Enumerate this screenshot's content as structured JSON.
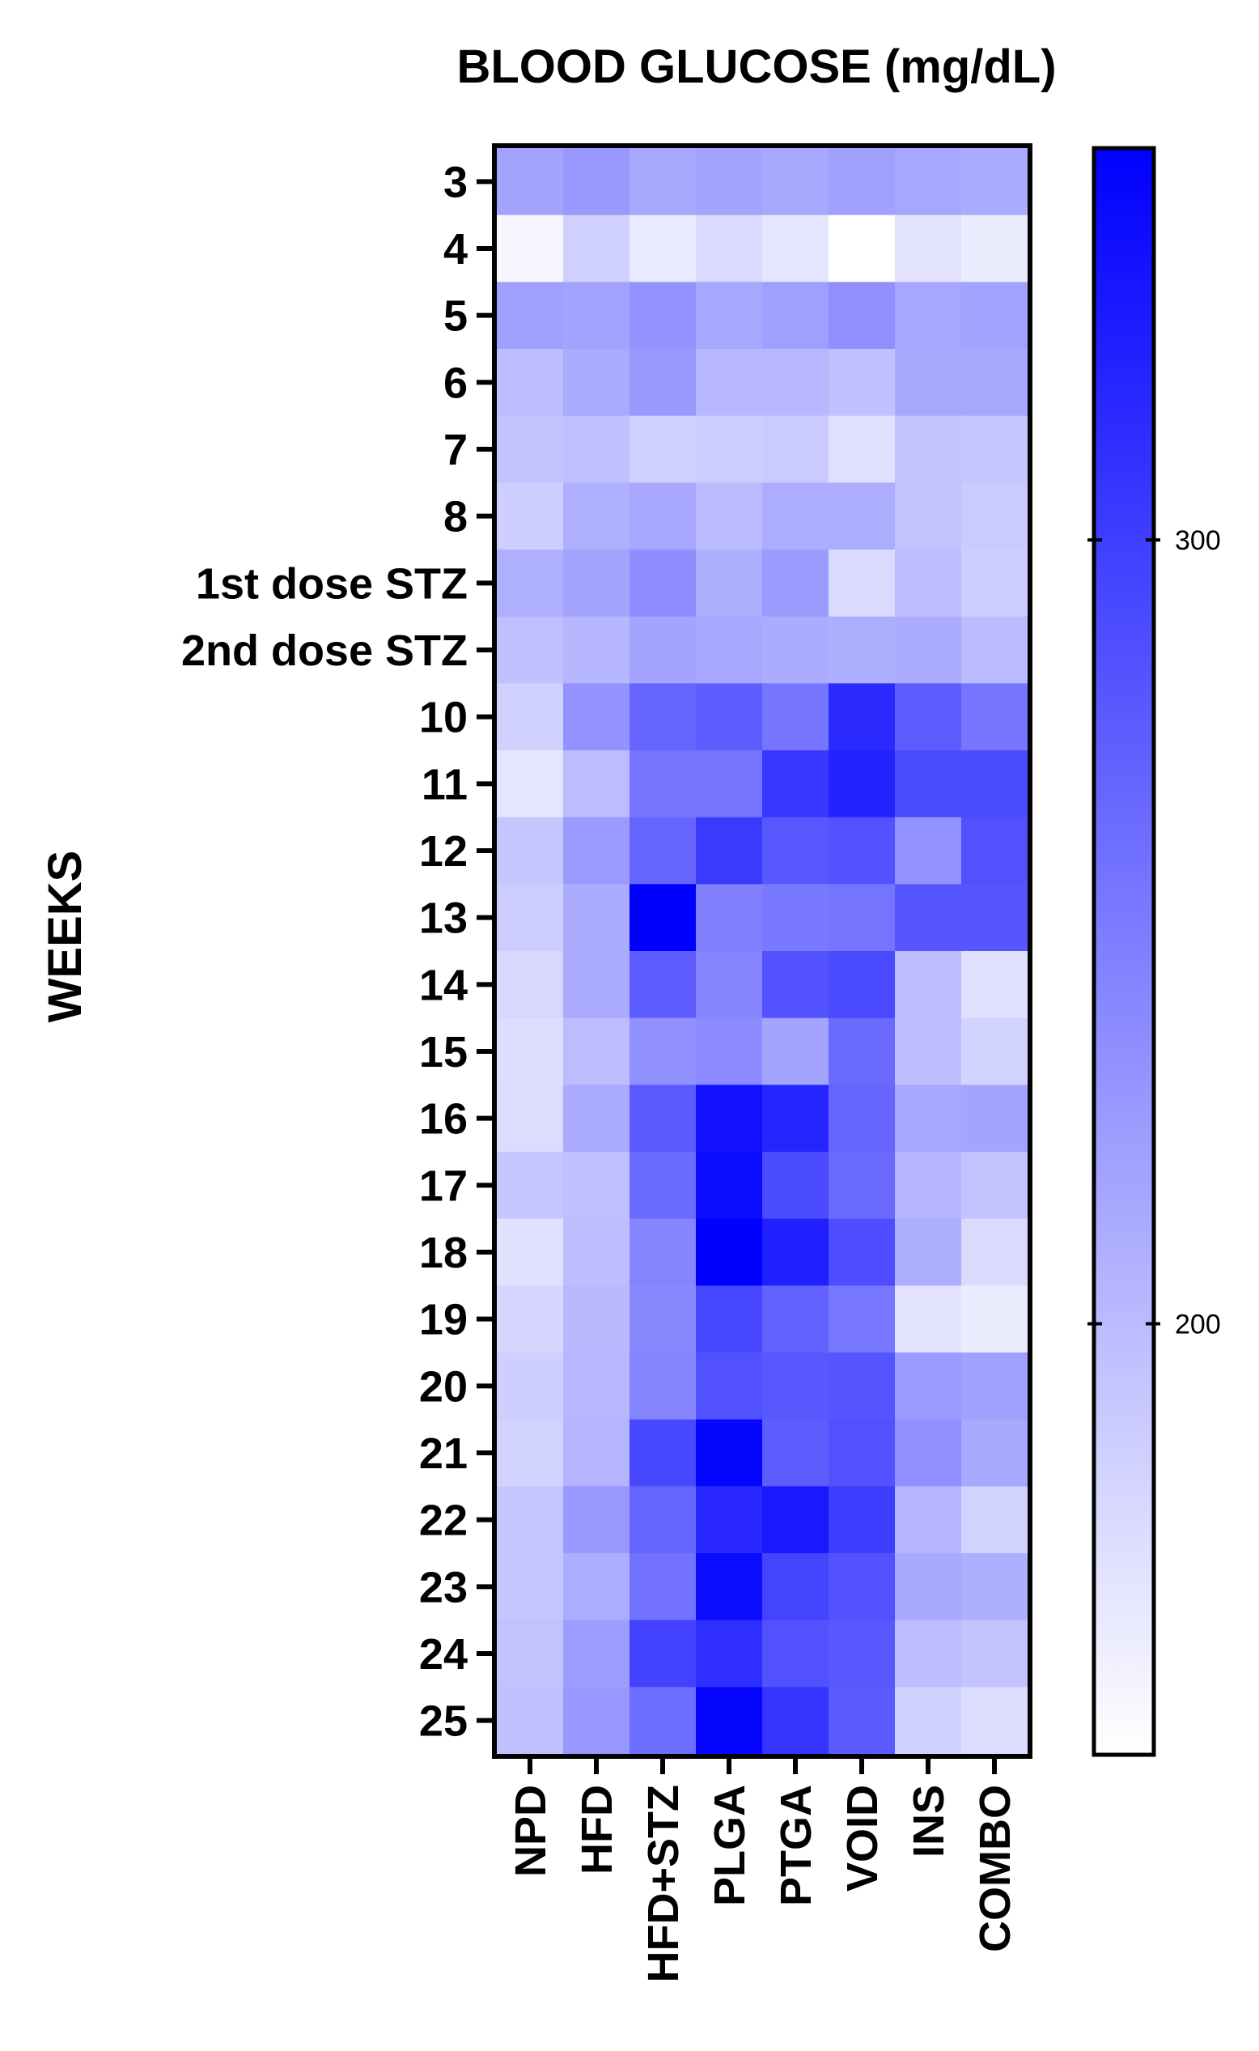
{
  "chart_data": {
    "type": "heatmap",
    "title": "BLOOD GLUCOSE (mg/dL)",
    "ylabel": "WEEKS",
    "xlabel": "",
    "columns": [
      "NPD",
      "HFD",
      "HFD+STZ",
      "PLGA",
      "PTGA",
      "VOID",
      "INS",
      "COMBO"
    ],
    "rows": [
      "3",
      "4",
      "5",
      "6",
      "7",
      "8",
      "1st dose STZ",
      "2nd dose STZ",
      "10",
      "11",
      "12",
      "13",
      "14",
      "15",
      "16",
      "17",
      "18",
      "19",
      "20",
      "21",
      "22",
      "23",
      "24",
      "25"
    ],
    "values": [
      [
        218,
        228,
        215,
        218,
        215,
        221,
        216,
        212
      ],
      [
        152,
        183,
        163,
        175,
        166,
        145,
        168,
        160
      ],
      [
        222,
        219,
        232,
        216,
        222,
        235,
        216,
        220
      ],
      [
        198,
        213,
        228,
        203,
        203,
        195,
        215,
        215
      ],
      [
        193,
        196,
        182,
        185,
        188,
        170,
        193,
        190
      ],
      [
        184,
        209,
        216,
        200,
        211,
        211,
        194,
        188
      ],
      [
        209,
        218,
        237,
        210,
        225,
        175,
        198,
        185
      ],
      [
        196,
        204,
        218,
        216,
        212,
        210,
        212,
        200
      ],
      [
        182,
        232,
        268,
        275,
        256,
        316,
        276,
        256
      ],
      [
        166,
        199,
        256,
        256,
        306,
        322,
        290,
        290
      ],
      [
        191,
        225,
        268,
        303,
        280,
        285,
        233,
        285
      ],
      [
        186,
        212,
        350,
        247,
        253,
        257,
        281,
        281
      ],
      [
        176,
        213,
        275,
        243,
        284,
        291,
        199,
        170
      ],
      [
        172,
        199,
        234,
        238,
        218,
        265,
        198,
        180
      ],
      [
        173,
        213,
        278,
        336,
        320,
        268,
        216,
        218
      ],
      [
        192,
        196,
        265,
        340,
        290,
        265,
        204,
        193
      ],
      [
        170,
        198,
        243,
        350,
        325,
        288,
        210,
        175
      ],
      [
        178,
        201,
        240,
        293,
        272,
        255,
        167,
        160
      ],
      [
        184,
        203,
        243,
        285,
        279,
        282,
        225,
        221
      ],
      [
        181,
        205,
        292,
        345,
        276,
        285,
        235,
        215
      ],
      [
        192,
        228,
        270,
        318,
        330,
        300,
        205,
        181
      ],
      [
        192,
        211,
        258,
        340,
        295,
        285,
        215,
        210
      ],
      [
        194,
        224,
        298,
        313,
        285,
        279,
        198,
        193
      ],
      [
        196,
        229,
        262,
        345,
        307,
        278,
        182,
        173
      ]
    ],
    "color_scale": {
      "min": 145,
      "max": 350,
      "low_color": "#ffffff",
      "high_color": "#0000ff"
    },
    "colorbar_ticks": [
      200,
      300
    ]
  }
}
